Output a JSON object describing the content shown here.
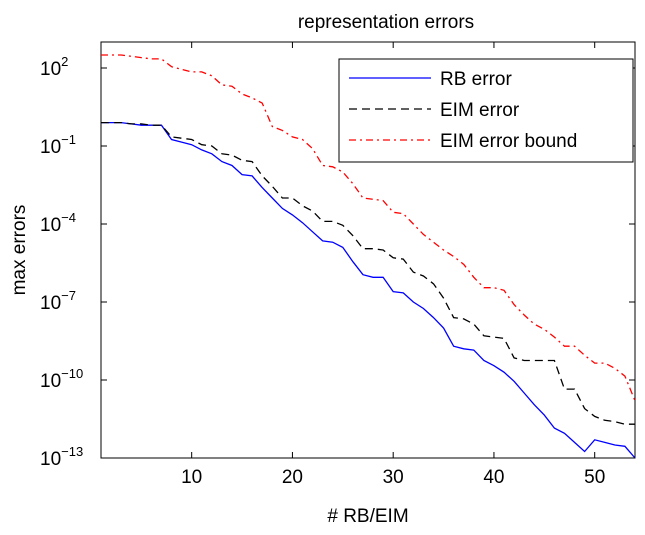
{
  "chart_data": {
    "type": "line",
    "title": "representation errors",
    "xlabel": "# RB/EIM",
    "ylabel": "max errors",
    "xlim": [
      1,
      54
    ],
    "ylim_exponent": [
      -13,
      3
    ],
    "y_scale": "log",
    "grid": false,
    "legend_position": "top-right",
    "x_ticks": [
      10,
      20,
      30,
      40,
      50
    ],
    "x_tick_labels": [
      "10",
      "20",
      "30",
      "40",
      "50"
    ],
    "y_ticks_exponent": [
      -13,
      -10,
      -7,
      -4,
      -1,
      2
    ],
    "y_tick_labels": [
      {
        "base": "10",
        "exp": "−13"
      },
      {
        "base": "10",
        "exp": "−10"
      },
      {
        "base": "10",
        "exp": "−7"
      },
      {
        "base": "10",
        "exp": "−4"
      },
      {
        "base": "10",
        "exp": "−1"
      },
      {
        "base": "10",
        "exp": "2"
      }
    ],
    "series": [
      {
        "name": "RB error",
        "color": "#0000ff",
        "dash": "solid",
        "log10_values": [
          [
            1,
            -0.1
          ],
          [
            2,
            -0.1
          ],
          [
            3,
            -0.1
          ],
          [
            4,
            -0.15
          ],
          [
            5,
            -0.2
          ],
          [
            6,
            -0.2
          ],
          [
            7,
            -0.2
          ],
          [
            8,
            -0.75
          ],
          [
            9,
            -0.85
          ],
          [
            10,
            -0.95
          ],
          [
            11,
            -1.15
          ],
          [
            12,
            -1.3
          ],
          [
            13,
            -1.6
          ],
          [
            14,
            -1.75
          ],
          [
            15,
            -2.1
          ],
          [
            16,
            -2.15
          ],
          [
            17,
            -2.6
          ],
          [
            18,
            -3.0
          ],
          [
            19,
            -3.4
          ],
          [
            20,
            -3.65
          ],
          [
            21,
            -3.95
          ],
          [
            22,
            -4.3
          ],
          [
            23,
            -4.65
          ],
          [
            24,
            -4.7
          ],
          [
            25,
            -4.9
          ],
          [
            26,
            -5.45
          ],
          [
            27,
            -5.95
          ],
          [
            28,
            -6.05
          ],
          [
            29,
            -6.05
          ],
          [
            30,
            -6.6
          ],
          [
            31,
            -6.65
          ],
          [
            32,
            -7.0
          ],
          [
            33,
            -7.25
          ],
          [
            34,
            -7.6
          ],
          [
            35,
            -8.0
          ],
          [
            36,
            -8.7
          ],
          [
            37,
            -8.8
          ],
          [
            38,
            -8.85
          ],
          [
            39,
            -9.25
          ],
          [
            40,
            -9.45
          ],
          [
            41,
            -9.7
          ],
          [
            42,
            -10.05
          ],
          [
            43,
            -10.5
          ],
          [
            44,
            -10.95
          ],
          [
            45,
            -11.35
          ],
          [
            46,
            -11.85
          ],
          [
            47,
            -12.05
          ],
          [
            48,
            -12.4
          ],
          [
            49,
            -12.75
          ],
          [
            50,
            -12.3
          ],
          [
            51,
            -12.4
          ],
          [
            52,
            -12.5
          ],
          [
            53,
            -12.55
          ],
          [
            54,
            -13.0
          ]
        ]
      },
      {
        "name": "EIM error",
        "color": "#000000",
        "dash": "dashed",
        "log10_values": [
          [
            1,
            -0.1
          ],
          [
            2,
            -0.1
          ],
          [
            3,
            -0.1
          ],
          [
            4,
            -0.15
          ],
          [
            5,
            -0.15
          ],
          [
            6,
            -0.2
          ],
          [
            7,
            -0.2
          ],
          [
            8,
            -0.65
          ],
          [
            9,
            -0.7
          ],
          [
            10,
            -0.75
          ],
          [
            11,
            -0.95
          ],
          [
            12,
            -1.0
          ],
          [
            13,
            -1.3
          ],
          [
            14,
            -1.35
          ],
          [
            15,
            -1.55
          ],
          [
            16,
            -1.6
          ],
          [
            17,
            -2.15
          ],
          [
            18,
            -2.55
          ],
          [
            19,
            -3.0
          ],
          [
            20,
            -3.0
          ],
          [
            21,
            -3.3
          ],
          [
            22,
            -3.5
          ],
          [
            23,
            -3.9
          ],
          [
            24,
            -3.9
          ],
          [
            25,
            -4.05
          ],
          [
            26,
            -4.45
          ],
          [
            27,
            -4.95
          ],
          [
            28,
            -4.95
          ],
          [
            29,
            -5.0
          ],
          [
            30,
            -5.3
          ],
          [
            31,
            -5.35
          ],
          [
            32,
            -5.85
          ],
          [
            33,
            -6.0
          ],
          [
            34,
            -6.3
          ],
          [
            35,
            -6.85
          ],
          [
            36,
            -7.6
          ],
          [
            37,
            -7.65
          ],
          [
            38,
            -7.85
          ],
          [
            39,
            -8.3
          ],
          [
            40,
            -8.35
          ],
          [
            41,
            -8.4
          ],
          [
            42,
            -9.15
          ],
          [
            43,
            -9.25
          ],
          [
            44,
            -9.25
          ],
          [
            45,
            -9.25
          ],
          [
            46,
            -9.25
          ],
          [
            47,
            -10.35
          ],
          [
            48,
            -10.35
          ],
          [
            49,
            -11.1
          ],
          [
            50,
            -11.4
          ],
          [
            51,
            -11.55
          ],
          [
            52,
            -11.6
          ],
          [
            53,
            -11.7
          ],
          [
            54,
            -11.7
          ]
        ]
      },
      {
        "name": "EIM error bound",
        "color": "#ff0000",
        "dash": "dashdot",
        "log10_values": [
          [
            1,
            2.5
          ],
          [
            2,
            2.5
          ],
          [
            3,
            2.5
          ],
          [
            4,
            2.45
          ],
          [
            5,
            2.4
          ],
          [
            6,
            2.35
          ],
          [
            7,
            2.35
          ],
          [
            8,
            2.05
          ],
          [
            9,
            1.95
          ],
          [
            10,
            1.85
          ],
          [
            11,
            1.85
          ],
          [
            12,
            1.7
          ],
          [
            13,
            1.35
          ],
          [
            14,
            1.3
          ],
          [
            15,
            1.0
          ],
          [
            16,
            0.85
          ],
          [
            17,
            0.65
          ],
          [
            18,
            -0.25
          ],
          [
            19,
            -0.4
          ],
          [
            20,
            -0.65
          ],
          [
            21,
            -0.75
          ],
          [
            22,
            -1.1
          ],
          [
            23,
            -1.75
          ],
          [
            24,
            -1.8
          ],
          [
            25,
            -2.0
          ],
          [
            26,
            -2.45
          ],
          [
            27,
            -3.0
          ],
          [
            28,
            -3.05
          ],
          [
            29,
            -3.1
          ],
          [
            30,
            -3.55
          ],
          [
            31,
            -3.6
          ],
          [
            32,
            -4.0
          ],
          [
            33,
            -4.4
          ],
          [
            34,
            -4.7
          ],
          [
            35,
            -5.0
          ],
          [
            36,
            -5.25
          ],
          [
            37,
            -5.55
          ],
          [
            38,
            -6.05
          ],
          [
            39,
            -6.45
          ],
          [
            40,
            -6.45
          ],
          [
            41,
            -6.55
          ],
          [
            42,
            -7.1
          ],
          [
            43,
            -7.5
          ],
          [
            44,
            -7.85
          ],
          [
            45,
            -8.05
          ],
          [
            46,
            -8.35
          ],
          [
            47,
            -8.7
          ],
          [
            48,
            -8.7
          ],
          [
            49,
            -9.05
          ],
          [
            50,
            -9.35
          ],
          [
            51,
            -9.35
          ],
          [
            52,
            -9.55
          ],
          [
            53,
            -9.85
          ],
          [
            54,
            -10.8
          ]
        ]
      }
    ]
  }
}
